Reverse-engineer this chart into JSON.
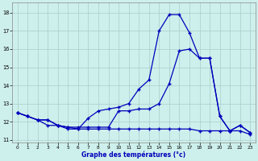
{
  "xlabel": "Graphe des températures (°c)",
  "background_color": "#cef0ec",
  "grid_color": "#aacccc",
  "line_color": "#0000bb",
  "hours": [
    0,
    1,
    2,
    3,
    4,
    5,
    6,
    7,
    8,
    9,
    10,
    11,
    12,
    13,
    14,
    15,
    16,
    17,
    18,
    19,
    20,
    21,
    22,
    23
  ],
  "temp_high": [
    12.5,
    12.3,
    12.1,
    12.1,
    11.8,
    11.7,
    11.6,
    12.2,
    12.6,
    12.7,
    12.8,
    13.0,
    13.8,
    14.3,
    17.0,
    17.9,
    17.9,
    16.9,
    15.5,
    15.5,
    12.3,
    11.5,
    11.8,
    11.4
  ],
  "temp_mid": [
    12.5,
    12.3,
    12.1,
    12.1,
    11.8,
    11.7,
    11.7,
    11.7,
    11.7,
    11.7,
    12.6,
    12.6,
    12.7,
    12.7,
    13.0,
    14.1,
    15.9,
    16.0,
    15.5,
    15.5,
    12.3,
    11.5,
    11.8,
    11.4
  ],
  "temp_low": [
    12.5,
    12.3,
    12.1,
    11.8,
    11.8,
    11.6,
    11.6,
    11.6,
    11.6,
    11.6,
    11.6,
    11.6,
    11.6,
    11.6,
    11.6,
    11.6,
    11.6,
    11.6,
    11.5,
    11.5,
    11.5,
    11.5,
    11.5,
    11.3
  ],
  "ylim": [
    10.85,
    18.55
  ],
  "xlim": [
    -0.5,
    23.5
  ],
  "yticks": [
    11,
    12,
    13,
    14,
    15,
    16,
    17,
    18
  ],
  "xticks": [
    0,
    1,
    2,
    3,
    4,
    5,
    6,
    7,
    8,
    9,
    10,
    11,
    12,
    13,
    14,
    15,
    16,
    17,
    18,
    19,
    20,
    21,
    22,
    23
  ]
}
